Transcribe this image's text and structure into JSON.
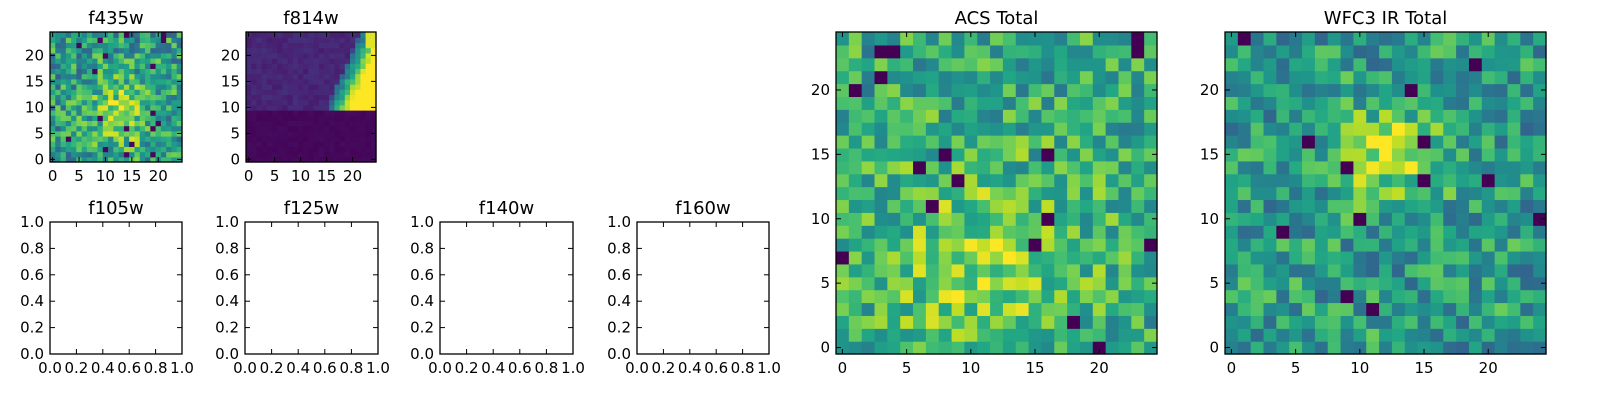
{
  "chart_data": [
    {
      "id": "f435w",
      "type": "heatmap",
      "title": "f435w",
      "grid_size": [
        25,
        25
      ],
      "xlim": [
        -0.5,
        24.5
      ],
      "ylim": [
        -0.5,
        24.5
      ],
      "xticks": [
        0,
        5,
        10,
        15,
        20
      ],
      "yticks": [
        0,
        5,
        10,
        15,
        20
      ],
      "colormap": "viridis",
      "pattern": "speckled noise, mostly green-yellow with a brighter yellow region near x 10-16, y 5-12",
      "grid": false
    },
    {
      "id": "f814w",
      "type": "heatmap",
      "title": "f814w",
      "grid_size": [
        25,
        25
      ],
      "xlim": [
        -0.5,
        24.5
      ],
      "ylim": [
        -0.5,
        24.5
      ],
      "xticks": [
        0,
        5,
        10,
        15,
        20
      ],
      "yticks": [
        0,
        5,
        10,
        15,
        20
      ],
      "colormap": "viridis",
      "pattern": "lower half (y<10) flat dark purple, upper-left dark indigo, bright blue/green/yellow edge along the upper right",
      "grid": false
    },
    {
      "id": "f105w",
      "type": "empty",
      "title": "f105w",
      "xlim": [
        0,
        1
      ],
      "ylim": [
        0,
        1
      ],
      "xticks": [
        "0.0",
        "0.2",
        "0.4",
        "0.6",
        "0.8",
        "1.0"
      ],
      "yticks": [
        "0.0",
        "0.2",
        "0.4",
        "0.6",
        "0.8",
        "1.0"
      ]
    },
    {
      "id": "f125w",
      "type": "empty",
      "title": "f125w",
      "xlim": [
        0,
        1
      ],
      "ylim": [
        0,
        1
      ],
      "xticks": [
        "0.0",
        "0.2",
        "0.4",
        "0.6",
        "0.8",
        "1.0"
      ],
      "yticks": [
        "0.0",
        "0.2",
        "0.4",
        "0.6",
        "0.8",
        "1.0"
      ]
    },
    {
      "id": "f140w",
      "type": "empty",
      "title": "f140w",
      "xlim": [
        0,
        1
      ],
      "ylim": [
        0,
        1
      ],
      "xticks": [
        "0.0",
        "0.2",
        "0.4",
        "0.6",
        "0.8",
        "1.0"
      ],
      "yticks": [
        "0.0",
        "0.2",
        "0.4",
        "0.6",
        "0.8",
        "1.0"
      ]
    },
    {
      "id": "f160w",
      "type": "empty",
      "title": "f160w",
      "xlim": [
        0,
        1
      ],
      "ylim": [
        0,
        1
      ],
      "xticks": [
        "0.0",
        "0.2",
        "0.4",
        "0.6",
        "0.8",
        "1.0"
      ],
      "yticks": [
        "0.0",
        "0.2",
        "0.4",
        "0.6",
        "0.8",
        "1.0"
      ]
    },
    {
      "id": "acs_total",
      "type": "heatmap",
      "title": "ACS Total",
      "grid_size": [
        25,
        25
      ],
      "xlim": [
        -0.5,
        24.5
      ],
      "ylim": [
        -0.5,
        24.5
      ],
      "xticks": [
        0,
        5,
        10,
        15,
        20
      ],
      "yticks": [
        0,
        5,
        10,
        15,
        20
      ],
      "colormap": "viridis",
      "pattern": "noisy green-yellow, brighter yellow in lower center, scattered dark purple pixels in the upper left",
      "grid": false
    },
    {
      "id": "wfc3_ir_total",
      "type": "heatmap",
      "title": "WFC3 IR Total",
      "grid_size": [
        25,
        25
      ],
      "xlim": [
        -0.5,
        24.5
      ],
      "ylim": [
        -0.5,
        24.5
      ],
      "xticks": [
        0,
        5,
        10,
        15,
        20
      ],
      "yticks": [
        0,
        5,
        10,
        15,
        20
      ],
      "colormap": "viridis",
      "pattern": "noisy teal-green, bright yellow blob near x 10-15, y 13-17, a few dark purple pixels",
      "grid": false
    }
  ]
}
